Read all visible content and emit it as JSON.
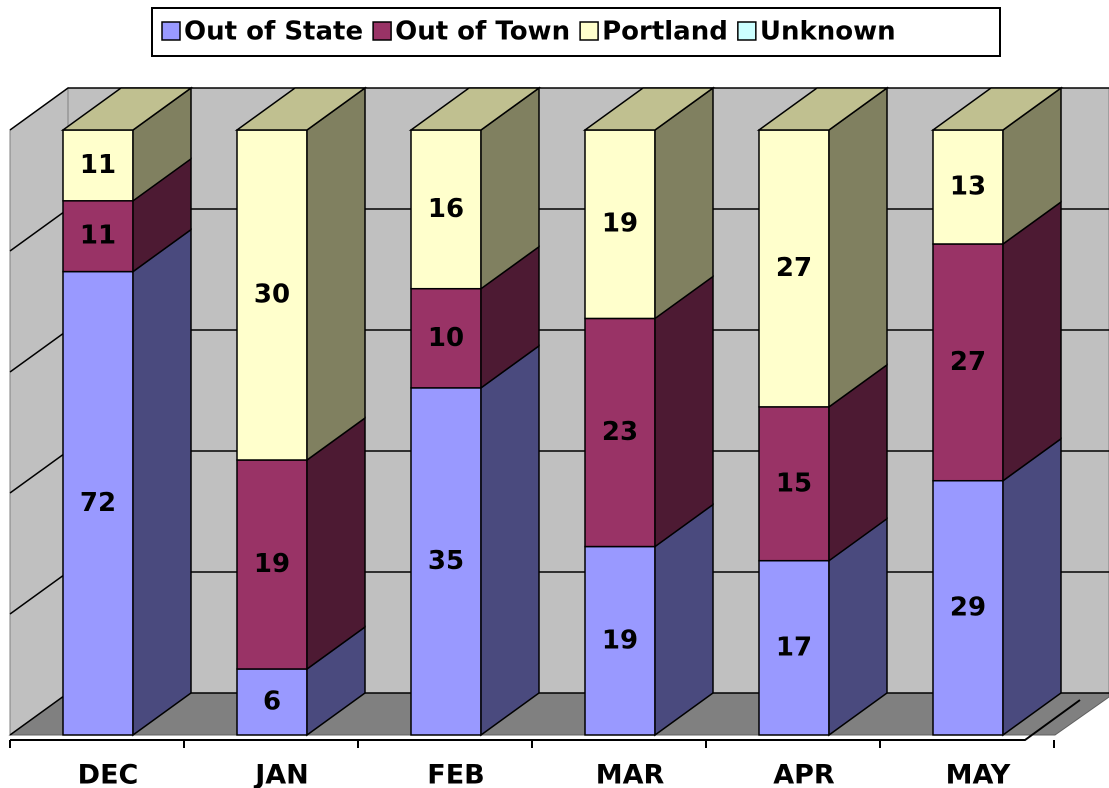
{
  "chart_data": {
    "type": "bar",
    "stacking": "percent",
    "three_d": true,
    "categories": [
      "DEC",
      "JAN",
      "FEB",
      "MAR",
      "APR",
      "MAY"
    ],
    "series": [
      {
        "name": "Out of State",
        "color": "#9999ff",
        "side_color": "#4a4a7e",
        "top_color": "#c8c8ff",
        "values": [
          72,
          6,
          35,
          19,
          17,
          29
        ]
      },
      {
        "name": "Out of Town",
        "color": "#993366",
        "side_color": "#4d1a33",
        "top_color": "#c07090",
        "values": [
          11,
          19,
          10,
          23,
          15,
          27
        ]
      },
      {
        "name": "Portland",
        "color": "#ffffcc",
        "side_color": "#808060",
        "top_color": "#c0c090",
        "values": [
          11,
          30,
          16,
          19,
          27,
          13
        ]
      },
      {
        "name": "Unknown",
        "color": "#ccffff",
        "side_color": "#668080",
        "top_color": "#a0d0d0",
        "values": [
          0,
          0,
          0,
          0,
          0,
          0
        ]
      }
    ],
    "ylim": [
      0,
      100
    ],
    "yticks": [
      0,
      20,
      40,
      60,
      80,
      100
    ],
    "grid": true,
    "legend": "top"
  }
}
